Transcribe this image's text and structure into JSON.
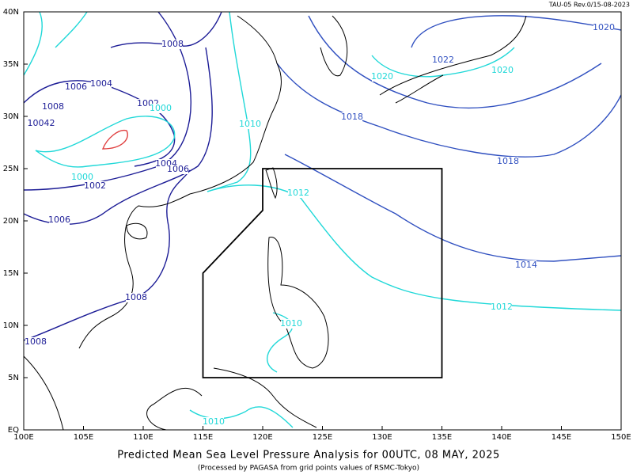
{
  "header": {
    "code": "TAU-05 Rev.0/15-08-2023"
  },
  "map": {
    "title": "Predicted Mean Sea Level Pressure Analysis for 00UTC, 08 MAY, 2025",
    "subtitle": "(Processed by PAGASA from grid points values of RSMC-Tokyo)",
    "xlim": [
      100,
      150
    ],
    "ylim": [
      0,
      40
    ],
    "xticks": [
      {
        "value": 100,
        "label": "100E"
      },
      {
        "value": 105,
        "label": "105E"
      },
      {
        "value": 110,
        "label": "110E"
      },
      {
        "value": 115,
        "label": "115E"
      },
      {
        "value": 120,
        "label": "120E"
      },
      {
        "value": 125,
        "label": "125E"
      },
      {
        "value": 130,
        "label": "130E"
      },
      {
        "value": 135,
        "label": "135E"
      },
      {
        "value": 140,
        "label": "140E"
      },
      {
        "value": 145,
        "label": "145E"
      },
      {
        "value": 150,
        "label": "150E"
      }
    ],
    "yticks": [
      {
        "value": 0,
        "label": "EQ"
      },
      {
        "value": 5,
        "label": "5N"
      },
      {
        "value": 10,
        "label": "10N"
      },
      {
        "value": 15,
        "label": "15N"
      },
      {
        "value": 20,
        "label": "20N"
      },
      {
        "value": 25,
        "label": "25N"
      },
      {
        "value": 30,
        "label": "30N"
      },
      {
        "value": 35,
        "label": "35N"
      },
      {
        "value": 40,
        "label": "40N"
      }
    ],
    "isobar_labels": [
      {
        "text": "1008",
        "color": "#1c1c96"
      },
      {
        "text": "1006",
        "color": "#1c1c96"
      },
      {
        "text": "1004",
        "color": "#1c1c96"
      },
      {
        "text": "1008",
        "color": "#1c1c96"
      },
      {
        "text": "10042",
        "color": "#1c1c96"
      },
      {
        "text": "1002",
        "color": "#1c1c96"
      },
      {
        "text": "1000",
        "color": "#20d8d8"
      },
      {
        "text": "1010",
        "color": "#20d8d8"
      },
      {
        "text": "1004",
        "color": "#1c1c96"
      },
      {
        "text": "1006",
        "color": "#1c1c96"
      },
      {
        "text": "1000",
        "color": "#20d8d8"
      },
      {
        "text": "1002",
        "color": "#1c1c96"
      },
      {
        "text": "1006",
        "color": "#1c1c96"
      },
      {
        "text": "1008",
        "color": "#1c1c96"
      },
      {
        "text": "1008",
        "color": "#1c1c96"
      },
      {
        "text": "1010",
        "color": "#20d8d8"
      },
      {
        "text": "1010",
        "color": "#20d8d8"
      },
      {
        "text": "1012",
        "color": "#20d8d8"
      },
      {
        "text": "1012",
        "color": "#20d8d8"
      },
      {
        "text": "1014",
        "color": "#3050c0"
      },
      {
        "text": "1018",
        "color": "#3050c0"
      },
      {
        "text": "1018",
        "color": "#3050c0"
      },
      {
        "text": "1020",
        "color": "#20d8d8"
      },
      {
        "text": "1022",
        "color": "#3050c0"
      },
      {
        "text": "1020",
        "color": "#20d8d8"
      },
      {
        "text": "1020",
        "color": "#3050c0"
      }
    ]
  }
}
